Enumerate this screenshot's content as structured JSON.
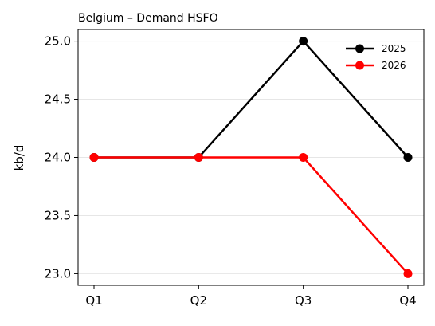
{
  "chart_data": {
    "type": "line",
    "title": "Belgium – Demand HSFO",
    "xlabel": "",
    "ylabel": "kb/d",
    "categories": [
      "Q1",
      "Q2",
      "Q3",
      "Q4"
    ],
    "ylim": [
      22.9,
      25.1
    ],
    "yticks": [
      23.0,
      23.5,
      24.0,
      24.5,
      25.0
    ],
    "ytick_labels": [
      "23.0",
      "23.5",
      "24.0",
      "24.5",
      "25.0"
    ],
    "grid": "horizontal",
    "legend_position": "top-right",
    "series": [
      {
        "name": "2025",
        "values": [
          24.0,
          24.0,
          25.0,
          24.0
        ],
        "color": "#000000"
      },
      {
        "name": "2026",
        "values": [
          24.0,
          24.0,
          24.0,
          23.0
        ],
        "color": "#ff0000"
      }
    ]
  }
}
